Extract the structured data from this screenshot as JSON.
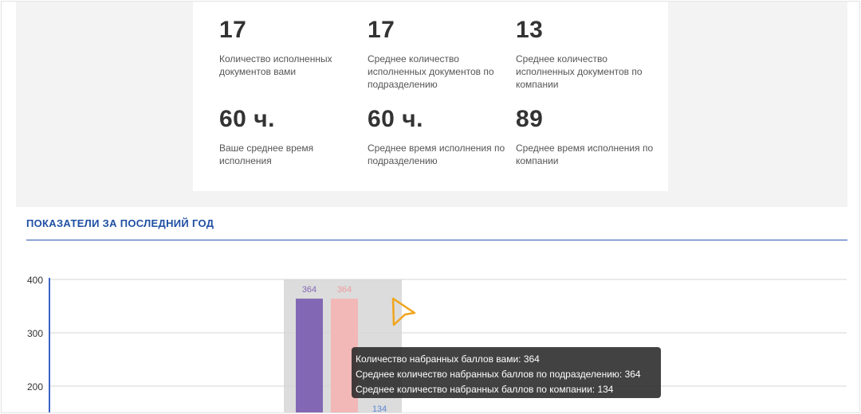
{
  "stats": [
    {
      "value": "17",
      "label": "Количество исполненных документов вами"
    },
    {
      "value": "17",
      "label": "Среднее количество исполненных документов по подразделению"
    },
    {
      "value": "13",
      "label": "Среднее количество исполненных документов по компании"
    },
    {
      "value": "60 ч.",
      "label": "Ваше среднее время исполнения"
    },
    {
      "value": "60 ч.",
      "label": "Среднее время исполнения по подразделению"
    },
    {
      "value": "89",
      "label": "Среднее время исполнения по компании"
    }
  ],
  "section": {
    "title": "ПОКАЗАТЕЛИ ЗА ПОСЛЕДНИЙ ГОД"
  },
  "chart_data": {
    "type": "bar",
    "yticks": [
      "400",
      "300",
      "200"
    ],
    "ylim_visible": [
      172,
      400
    ],
    "series": [
      {
        "value": 364,
        "label": "364",
        "color": "#8268b4"
      },
      {
        "value": 364,
        "label": "364",
        "color": "#f2b7b7"
      },
      {
        "value": 134,
        "label": "134",
        "color": "#5b86d6"
      }
    ],
    "hover_highlight": true
  },
  "tooltip": {
    "lines": [
      "Количество набранных баллов вами: 364",
      "Среднее количество набранных баллов по подразделению: 364",
      "Среднее количество набранных баллов по компании: 134"
    ]
  },
  "colors": {
    "accent": "#1f4fa3",
    "cursor": "#f0a51c",
    "band": "#f3f3f3"
  }
}
